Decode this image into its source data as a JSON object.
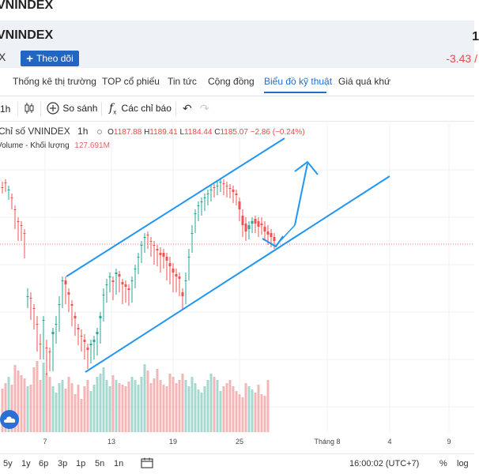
{
  "top_title": "VNINDEX",
  "stock": {
    "name": "VNINDEX",
    "exchange_code": "X",
    "price": "1",
    "follow_label": "Theo dõi",
    "change": "-3.43 /"
  },
  "tabs": [
    {
      "label": "Thống kê thị trường",
      "active": false
    },
    {
      "label": "TOP cổ phiếu",
      "active": false
    },
    {
      "label": "Tin tức",
      "active": false
    },
    {
      "label": "Cộng đồng",
      "active": false
    },
    {
      "label": "Biểu đồ kỹ thuật",
      "active": true
    },
    {
      "label": "Giá quá khứ",
      "active": false
    }
  ],
  "toolbar": {
    "interval": "1h",
    "compare_label": "So sánh",
    "indicators_label": "Các chỉ báo"
  },
  "legend": {
    "symbol": "Chỉ số VNINDEX",
    "interval": "1h",
    "open_label": "O",
    "open": "1187.88",
    "high_label": "H",
    "high": "1189.41",
    "low_label": "L",
    "low": "1184.44",
    "close_label": "C",
    "close": "1185.07",
    "change": "−2.86 (−0.24%)",
    "volume_label": "Volume - Khối lượng",
    "volume_value": "127.691M"
  },
  "chart_data": {
    "type": "candlestick",
    "x_ticks": [
      "7",
      "13",
      "19",
      "25",
      "Tháng 8",
      "4",
      "9"
    ],
    "volume_last": "127.691M",
    "last_close": 1185.07,
    "colors": {
      "up": "#26a69a",
      "down": "#ef5350",
      "trendline": "#2196f3"
    }
  },
  "bottom": {
    "ranges": [
      "5y",
      "1y",
      "6p",
      "3p",
      "1p",
      "5n",
      "1n"
    ],
    "time": "16:00:02 (UTC+7)",
    "percent": "%",
    "log": "log"
  }
}
